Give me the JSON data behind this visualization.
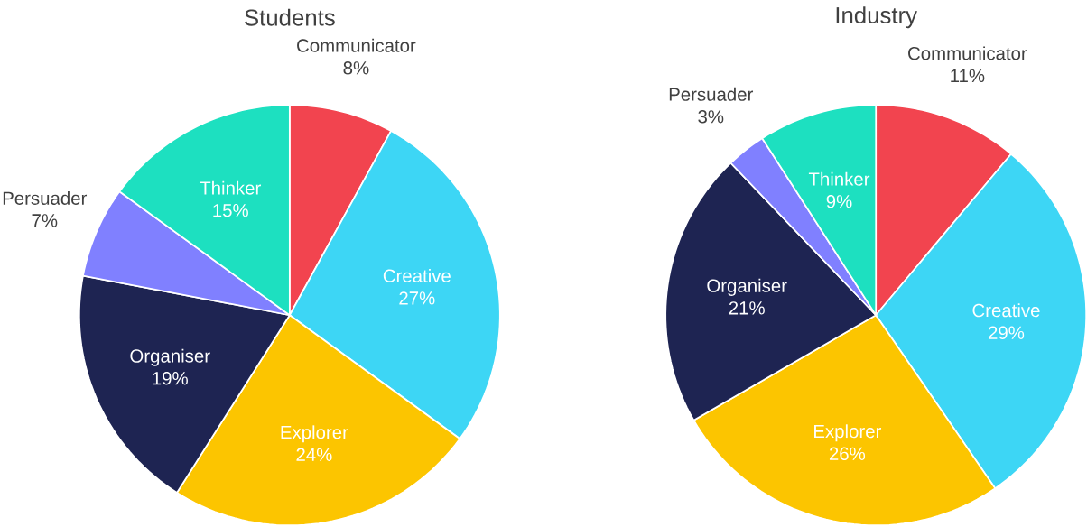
{
  "chart_data": [
    {
      "type": "pie",
      "title": "Students",
      "categories": [
        "Communicator",
        "Creative",
        "Explorer",
        "Organiser",
        "Persuader",
        "Thinker"
      ],
      "values": [
        8,
        27,
        24,
        19,
        7,
        15
      ],
      "value_labels": [
        "8%",
        "27%",
        "24%",
        "19%",
        "7%",
        "15%"
      ],
      "colors": [
        "#f2444f",
        "#3dd6f5",
        "#fcc500",
        "#1e2452",
        "#8080ff",
        "#1de0c0"
      ]
    },
    {
      "type": "pie",
      "title": "Industry",
      "categories": [
        "Communicator",
        "Creative",
        "Explorer",
        "Organiser",
        "Persuader",
        "Thinker"
      ],
      "values": [
        11,
        29,
        26,
        21,
        3,
        9
      ],
      "value_labels": [
        "11%",
        "29%",
        "26%",
        "21%",
        "3%",
        "9%"
      ],
      "colors": [
        "#f2444f",
        "#3dd6f5",
        "#fcc500",
        "#1e2452",
        "#8080ff",
        "#1de0c0"
      ]
    }
  ]
}
